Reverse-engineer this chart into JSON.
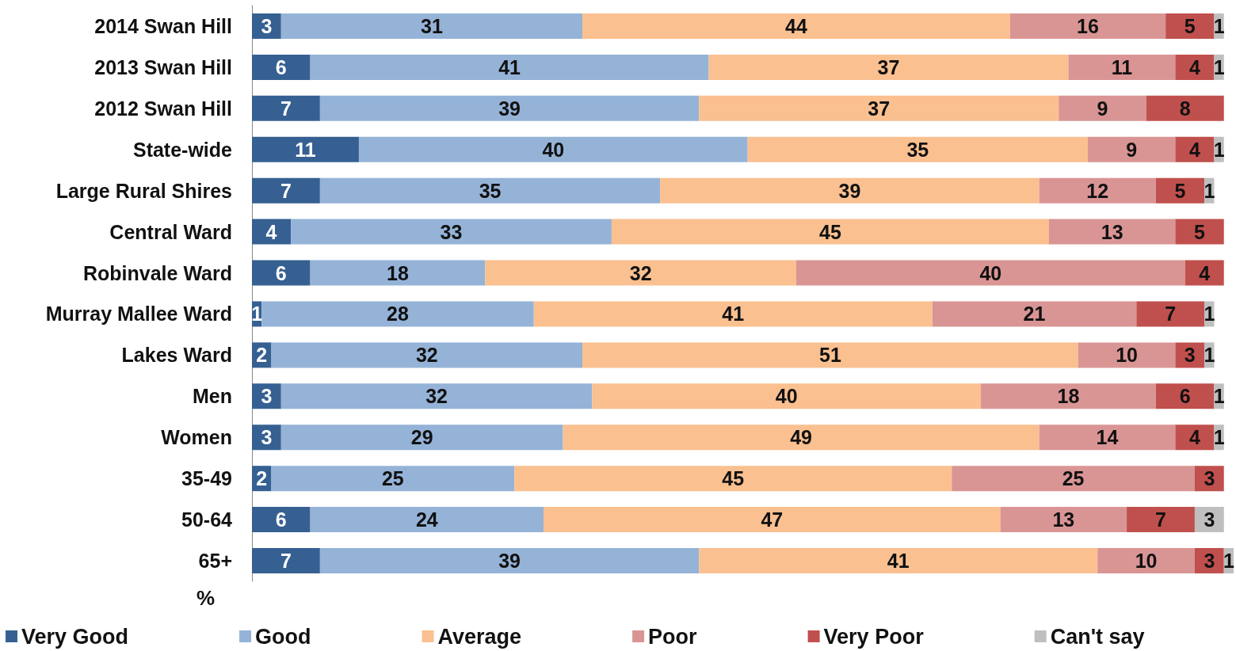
{
  "chart_data": {
    "type": "bar",
    "orientation": "horizontal",
    "stacked": true,
    "data_labels": true,
    "legend": "bottom",
    "xlabel": "%",
    "categories": [
      "2014 Swan Hill",
      "2013 Swan Hill",
      "2012 Swan Hill",
      "State-wide",
      "Large Rural Shires",
      "Central Ward",
      "Robinvale Ward",
      "Murray Mallee Ward",
      "Lakes Ward",
      "Men",
      "Women",
      "35-49",
      "50-64",
      "65+"
    ],
    "series": [
      {
        "name": "Very Good",
        "color": "#366092",
        "values": [
          3,
          6,
          7,
          11,
          7,
          4,
          6,
          1,
          2,
          3,
          3,
          2,
          6,
          7
        ]
      },
      {
        "name": "Good",
        "color": "#95b3d7",
        "values": [
          31,
          41,
          39,
          40,
          35,
          33,
          18,
          28,
          32,
          32,
          29,
          25,
          24,
          39
        ]
      },
      {
        "name": "Average",
        "color": "#fac090",
        "values": [
          44,
          37,
          37,
          35,
          39,
          45,
          32,
          41,
          51,
          40,
          49,
          45,
          47,
          41
        ]
      },
      {
        "name": "Poor",
        "color": "#d99594",
        "values": [
          16,
          11,
          9,
          9,
          12,
          13,
          40,
          21,
          10,
          18,
          14,
          25,
          13,
          10
        ]
      },
      {
        "name": "Very Poor",
        "color": "#c0504d",
        "values": [
          5,
          4,
          8,
          4,
          5,
          5,
          4,
          7,
          3,
          6,
          4,
          3,
          7,
          3
        ]
      },
      {
        "name": "Can't say",
        "color": "#bfbfbf",
        "values": [
          1,
          1,
          null,
          1,
          1,
          null,
          null,
          1,
          1,
          1,
          1,
          null,
          3,
          1
        ]
      }
    ]
  }
}
